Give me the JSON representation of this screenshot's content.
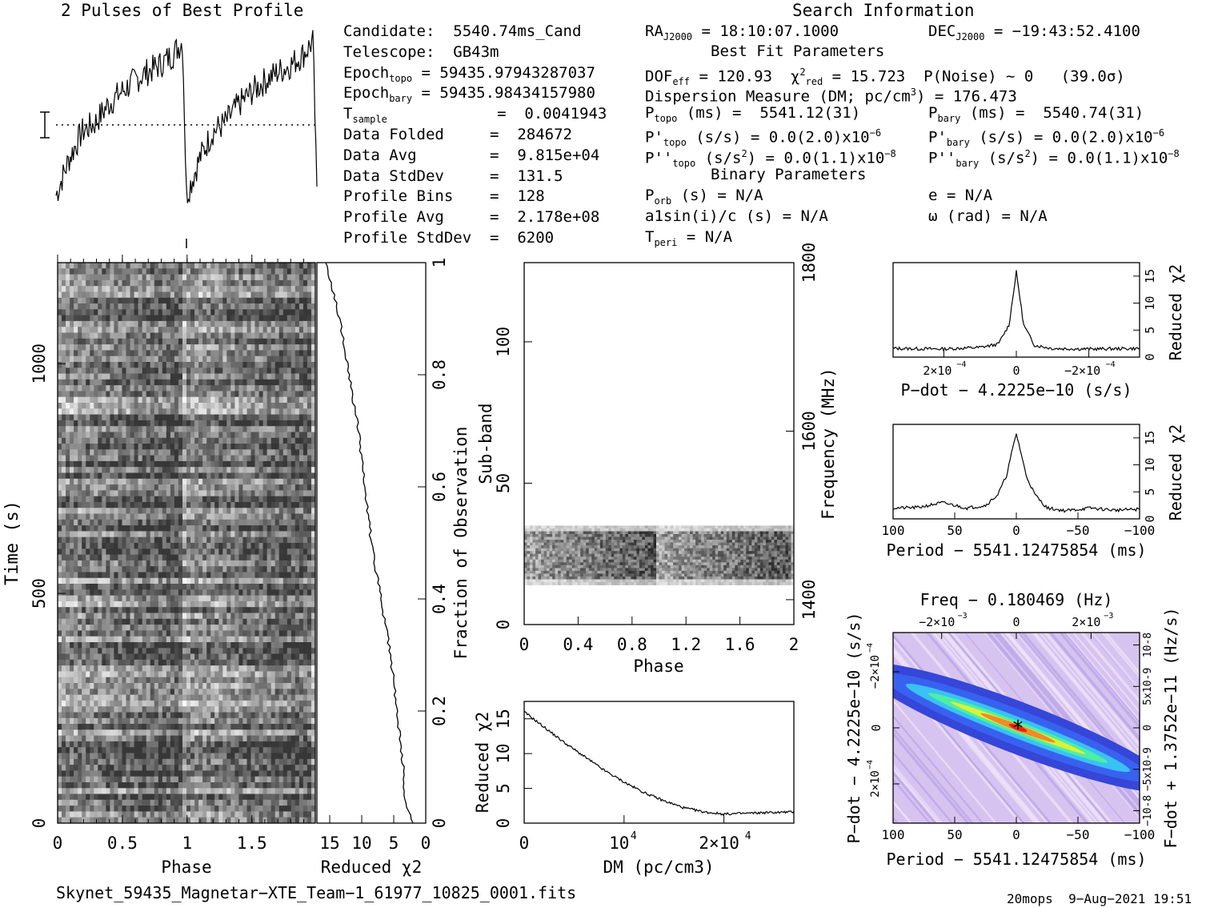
{
  "header": {
    "profile_title": "2 Pulses of Best Profile",
    "search_title": "Search Information",
    "best_fit_title": "Best Fit Parameters",
    "binary_title": "Binary Parameters"
  },
  "info_left": [
    {
      "label": "Candidate:  5540.74ms_Cand",
      "value": ""
    },
    {
      "label": "Telescope:  GB43m",
      "value": ""
    },
    {
      "label": "Epoch",
      "sub": "topo",
      "value": " = 59435.97943287037"
    },
    {
      "label": "Epoch",
      "sub": "bary",
      "value": " = 59435.98434157980"
    },
    {
      "label": "T",
      "sub": "sample",
      "value": "            =  0.0041943"
    },
    {
      "label": "Data Folded     =  284672",
      "value": ""
    },
    {
      "label": "Data Avg        =  9.815e+04",
      "value": ""
    },
    {
      "label": "Data StdDev     =  131.5",
      "value": ""
    },
    {
      "label": "Profile Bins    =  128",
      "value": ""
    },
    {
      "label": "Profile Avg     =  2.178e+08",
      "value": ""
    },
    {
      "label": "Profile StdDev  =  6200",
      "value": ""
    }
  ],
  "info_mid": {
    "ra": "18:10:07.1000",
    "dof": "120.93",
    "chi2": "15.723",
    "pnoise": "P(Noise) ~ 0   (39.0σ)",
    "dm_line": "Dispersion Measure (DM; pc/cm",
    "dm_value": ") = 176.473",
    "ptopo": "5541.12(31)",
    "pdtopo": "0.0(2.0)x10",
    "pddtopo": "0.0(1.1)x10",
    "porb": "N/A",
    "a1": "a1sin(i)/c (s) = N/A",
    "tperi": "N/A"
  },
  "info_right": {
    "dec": "−19:43:52.4100",
    "pbary": "5540.74(31)",
    "pdbary": "0.0(2.0)x10",
    "pddbary": "0.0(1.1)x10",
    "ecc": "e = N/A",
    "omega": "ω (rad) = N/A"
  },
  "footer": {
    "filename": "Skynet_59435_Magnetar−XTE_Team−1_61977_10825_0001.fits",
    "stamp": "20mops  9−Aug−2021 19:51"
  },
  "chart_data": [
    {
      "type": "line",
      "id": "profile",
      "title": "2 Pulses of Best Profile",
      "description_values": "two pulse cycles, linear rise from phase start to sharp drop near end of each cycle",
      "x": [
        0,
        0.1,
        0.2,
        0.3,
        0.4,
        0.5,
        0.6,
        0.7,
        0.8,
        0.9,
        0.97,
        1.0,
        1.1,
        1.2,
        1.3,
        1.4,
        1.5,
        1.6,
        1.7,
        1.8,
        1.9,
        1.97,
        2.0
      ],
      "y": [
        0.15,
        0.35,
        0.5,
        0.55,
        0.65,
        0.72,
        0.78,
        0.83,
        0.87,
        0.93,
        1.0,
        0.15,
        0.35,
        0.5,
        0.55,
        0.65,
        0.72,
        0.78,
        0.83,
        0.87,
        0.93,
        1.0,
        0.15
      ]
    },
    {
      "type": "heatmap",
      "id": "time-phase",
      "xlabel": "Phase",
      "ylabel": "Time (s)",
      "x_ticks": [
        "0",
        "0.5",
        "1",
        "1.5"
      ],
      "y_ticks": [
        "0",
        "500",
        "1000"
      ],
      "xlim": [
        0,
        2
      ],
      "ylim": [
        0,
        1220
      ]
    },
    {
      "type": "line",
      "id": "time-chi2",
      "xlabel": "Reduced χ2",
      "ylabel": "Fraction of Observation",
      "x_ticks": [
        "15",
        "10",
        "5",
        "0"
      ],
      "y_ticks": [
        "0",
        "0.2",
        "0.4",
        "0.6",
        "0.8",
        "1"
      ],
      "xlim": [
        17,
        0
      ],
      "ylim": [
        0,
        1
      ],
      "y": [
        0.0,
        0.05,
        0.1,
        0.2,
        0.3,
        0.4,
        0.5,
        0.6,
        0.7,
        0.8,
        0.9,
        1.0
      ],
      "x": [
        2,
        3.5,
        3.5,
        4.5,
        5.5,
        7.0,
        8.5,
        9.5,
        10.5,
        12.0,
        13.5,
        15.5
      ]
    },
    {
      "type": "heatmap",
      "id": "subband-phase",
      "xlabel": "Phase",
      "ylabel": "Sub-band",
      "y2label": "Frequency (MHz)",
      "x_ticks": [
        "0",
        "0.4",
        "0.8",
        "1.2",
        "1.6",
        "2"
      ],
      "y_ticks": [
        "0",
        "50",
        "100"
      ],
      "y2_ticks": [
        "1400",
        "1600",
        "1800"
      ],
      "xlim": [
        0,
        2
      ],
      "ylim": [
        0,
        128
      ],
      "active_subbands": [
        14,
        35
      ]
    },
    {
      "type": "line",
      "id": "dm-chi2",
      "xlabel": "DM (pc/cm3)",
      "ylabel": "Reduced χ2",
      "x_ticks": [
        "0",
        "10^4",
        "2x10^4"
      ],
      "y_ticks": [
        "0",
        "5",
        "10",
        "15"
      ],
      "xlim": [
        0,
        27000
      ],
      "ylim": [
        0,
        17.5
      ],
      "x": [
        0,
        2000,
        4000,
        6000,
        8000,
        10000,
        12000,
        14000,
        16000,
        18000,
        20000,
        22000,
        24000,
        27000
      ],
      "y": [
        16,
        13.8,
        11.6,
        9.6,
        7.6,
        5.9,
        4.4,
        3.2,
        2.2,
        1.6,
        1.3,
        1.4,
        1.5,
        1.6
      ]
    },
    {
      "type": "line",
      "id": "pdot-chi2",
      "xlabel": "P−dot − 4.2225e−10 (s/s)",
      "ylabel": "Reduced χ2",
      "x_ticks": [
        "2x10^-4",
        "0",
        "−2x10^-4"
      ],
      "y_ticks": [
        "0",
        "5",
        "10",
        "15"
      ],
      "xlim": [
        0.00034,
        -0.00034
      ],
      "ylim": [
        0,
        17.5
      ],
      "x": [
        0.00034,
        0.0002,
        0.0001,
        5e-05,
        2e-05,
        0.0,
        -2e-05,
        -5e-05,
        -0.0001,
        -0.0002,
        -0.00034
      ],
      "y": [
        1.6,
        1.5,
        1.8,
        2.4,
        6.0,
        15.8,
        6.0,
        2.2,
        1.6,
        1.5,
        1.6
      ]
    },
    {
      "type": "line",
      "id": "period-chi2",
      "xlabel": "Period − 5541.12475854 (ms)",
      "ylabel": "Reduced χ2",
      "x_ticks": [
        "100",
        "50",
        "0",
        "−50",
        "−100"
      ],
      "y_ticks": [
        "0",
        "5",
        "10",
        "15"
      ],
      "xlim": [
        100,
        -100
      ],
      "ylim": [
        0,
        17.5
      ],
      "x": [
        100,
        80,
        60,
        40,
        25,
        15,
        8,
        4,
        0,
        -4,
        -8,
        -15,
        -25,
        -40,
        -60,
        -80,
        -100
      ],
      "y": [
        2.0,
        2.1,
        3.0,
        2.0,
        2.5,
        4.5,
        8.0,
        12.0,
        15.8,
        12.0,
        8.0,
        4.5,
        2.0,
        1.5,
        2.0,
        1.6,
        1.8
      ]
    },
    {
      "type": "heatmap",
      "id": "p-pdot",
      "title": "Freq − 0.180469 (Hz)",
      "xlabel": "Period − 5541.12475854 (ms)",
      "ylabel": "P−dot − 4.2225e−10 (s/s)",
      "y2label": "F−dot + 1.3752e−11 (Hz/s)",
      "x_ticks": [
        "100",
        "50",
        "0",
        "−50",
        "−100"
      ],
      "x2_ticks": [
        "−2x10^-3",
        "0",
        "2x10^-3"
      ],
      "y_ticks": [
        "−2x10^-4",
        "0",
        "2x10^-4"
      ],
      "y2_ticks": [
        "10^-8",
        "5x10^-9",
        "0",
        "−5x10^-9",
        "−10^-8"
      ],
      "xlim": [
        100,
        -100
      ],
      "ylim": [
        0.00034,
        -0.00034
      ]
    }
  ]
}
